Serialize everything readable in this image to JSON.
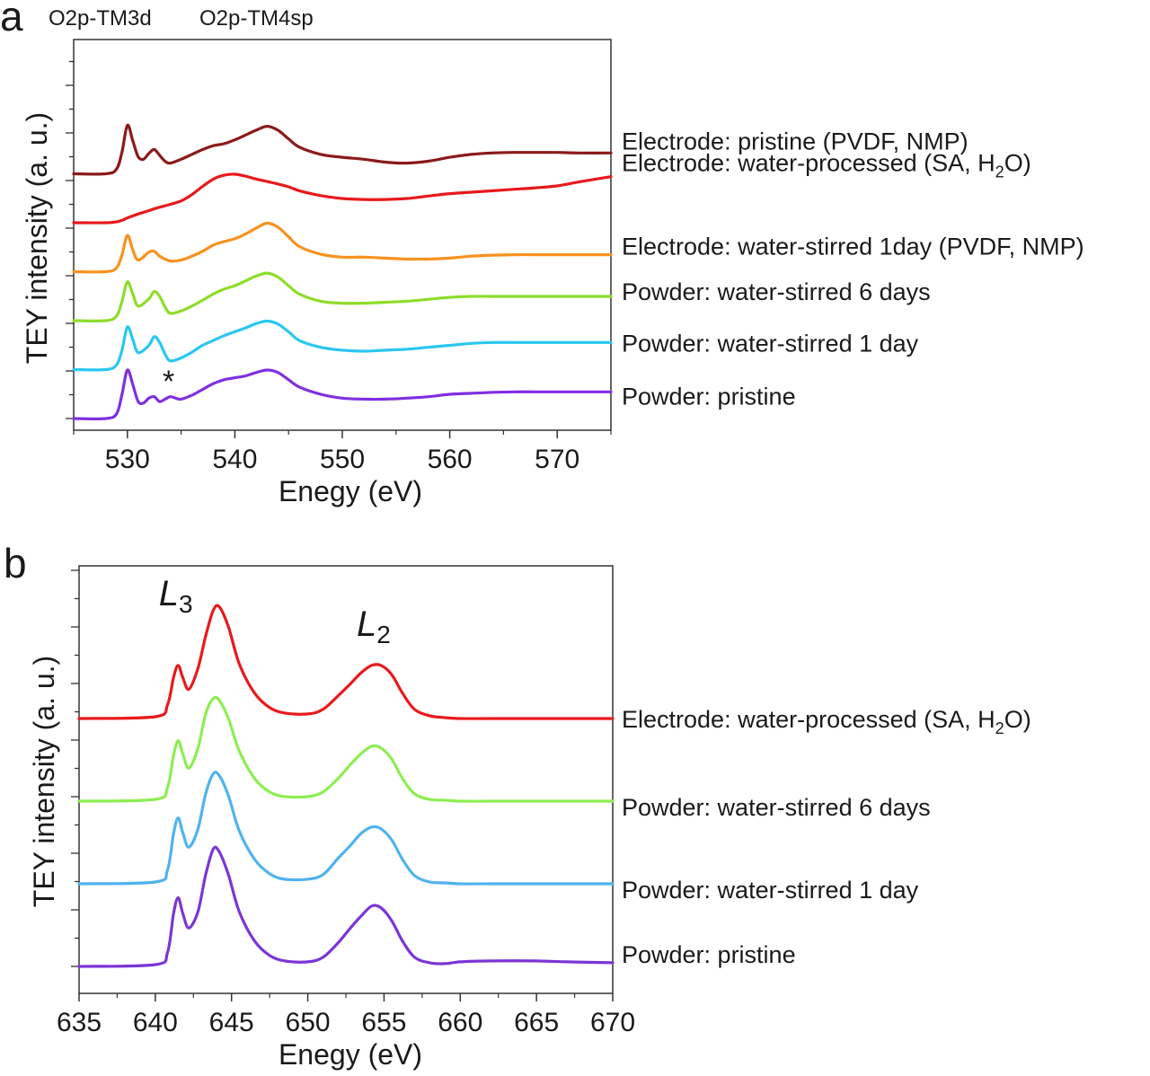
{
  "chart_data": [
    {
      "type": "line",
      "panel_label": "a",
      "xlabel": "Enegy (eV)",
      "ylabel": "TEY intensity (a. u.)",
      "xlim": [
        525,
        575
      ],
      "xticks": [
        530,
        540,
        550,
        560,
        570
      ],
      "top_annotations": [
        "O2p-TM3d",
        "O2p-TM4sp"
      ],
      "peak_marker": {
        "text": "*",
        "x": 534
      },
      "series": [
        {
          "name": "Electrode: pristine (PVDF, NMP)",
          "color": "#8b1a1a",
          "offset": 5,
          "x": [
            525,
            528,
            529,
            529.5,
            530,
            530.5,
            531,
            531.5,
            532,
            532.5,
            533,
            533.5,
            534,
            535,
            536,
            537,
            538,
            539,
            540,
            541,
            542,
            543,
            544,
            545,
            546,
            548,
            550,
            552,
            554,
            556,
            558,
            560,
            562,
            564,
            566,
            568,
            570,
            572,
            575
          ],
          "y": [
            0,
            0,
            0.1,
            0.45,
            1.0,
            0.68,
            0.35,
            0.3,
            0.42,
            0.5,
            0.38,
            0.26,
            0.22,
            0.3,
            0.4,
            0.5,
            0.58,
            0.62,
            0.7,
            0.8,
            0.9,
            0.98,
            0.9,
            0.72,
            0.55,
            0.4,
            0.34,
            0.3,
            0.24,
            0.22,
            0.26,
            0.34,
            0.4,
            0.43,
            0.44,
            0.44,
            0.44,
            0.43,
            0.43
          ]
        },
        {
          "name": "Electrode: water-processed (SA, H₂O)",
          "color": "#e8191c",
          "offset": 4,
          "x": [
            525,
            528,
            529,
            529.5,
            530,
            531,
            532,
            533,
            534,
            535,
            536,
            537,
            538,
            539,
            540,
            541,
            542,
            543,
            544,
            545,
            546,
            548,
            550,
            552,
            554,
            556,
            558,
            560,
            562,
            564,
            566,
            568,
            570,
            572,
            575
          ],
          "y": [
            0,
            0,
            0.02,
            0.05,
            0.1,
            0.18,
            0.25,
            0.32,
            0.38,
            0.45,
            0.58,
            0.75,
            0.9,
            0.98,
            1.0,
            0.96,
            0.9,
            0.85,
            0.8,
            0.74,
            0.66,
            0.56,
            0.5,
            0.48,
            0.48,
            0.5,
            0.55,
            0.6,
            0.63,
            0.66,
            0.69,
            0.72,
            0.76,
            0.84,
            0.95
          ]
        },
        {
          "name": "Electrode: water-stirred 1day (PVDF, NMP)",
          "color": "#f7921e",
          "offset": 3,
          "x": [
            525,
            528,
            529,
            529.5,
            530,
            530.5,
            531,
            532,
            532.5,
            533,
            534,
            535,
            536,
            537,
            538,
            539,
            540,
            541,
            542,
            543,
            544,
            545,
            546,
            548,
            550,
            552,
            554,
            556,
            558,
            560,
            562,
            564,
            566,
            568,
            570,
            572,
            575
          ],
          "y": [
            0,
            0,
            0.08,
            0.35,
            0.75,
            0.45,
            0.24,
            0.4,
            0.42,
            0.32,
            0.22,
            0.24,
            0.32,
            0.42,
            0.55,
            0.62,
            0.68,
            0.78,
            0.9,
            1.0,
            0.92,
            0.72,
            0.52,
            0.36,
            0.3,
            0.3,
            0.28,
            0.26,
            0.26,
            0.28,
            0.32,
            0.34,
            0.35,
            0.35,
            0.35,
            0.35,
            0.35
          ]
        },
        {
          "name": "Powder: water-stirred 6 days",
          "color": "#8edc2a",
          "offset": 2,
          "x": [
            525,
            528,
            529,
            529.5,
            530,
            530.5,
            531,
            532,
            532.5,
            533,
            533.5,
            534,
            535,
            536,
            537,
            538,
            539,
            540,
            541,
            542,
            543,
            544,
            545,
            546,
            548,
            550,
            552,
            554,
            556,
            558,
            560,
            562,
            564,
            566,
            568,
            570,
            572,
            575
          ],
          "y": [
            0,
            0,
            0.1,
            0.4,
            0.8,
            0.55,
            0.3,
            0.45,
            0.6,
            0.5,
            0.28,
            0.15,
            0.2,
            0.3,
            0.42,
            0.55,
            0.65,
            0.72,
            0.82,
            0.92,
            0.98,
            0.9,
            0.72,
            0.55,
            0.4,
            0.36,
            0.36,
            0.38,
            0.4,
            0.44,
            0.48,
            0.5,
            0.5,
            0.5,
            0.5,
            0.5,
            0.5,
            0.5
          ]
        },
        {
          "name": "Powder: water-stirred 1 day",
          "color": "#29c7f0",
          "offset": 1,
          "x": [
            525,
            528,
            529,
            529.5,
            530,
            530.5,
            531,
            532,
            532.5,
            533,
            533.5,
            534,
            535,
            536,
            537,
            538,
            539,
            540,
            541,
            542,
            543,
            544,
            545,
            546,
            548,
            550,
            552,
            554,
            556,
            558,
            560,
            562,
            564,
            566,
            568,
            570,
            572,
            575
          ],
          "y": [
            0,
            0,
            0.1,
            0.4,
            0.88,
            0.62,
            0.35,
            0.5,
            0.68,
            0.56,
            0.32,
            0.18,
            0.24,
            0.36,
            0.5,
            0.6,
            0.7,
            0.78,
            0.86,
            0.95,
            1.0,
            0.94,
            0.78,
            0.6,
            0.46,
            0.4,
            0.38,
            0.4,
            0.42,
            0.46,
            0.5,
            0.54,
            0.56,
            0.56,
            0.56,
            0.56,
            0.56,
            0.56
          ]
        },
        {
          "name": "Powder: pristine",
          "color": "#7f2fe0",
          "offset": 0,
          "x": [
            525,
            528,
            529,
            529.5,
            530,
            530.5,
            531,
            531.5,
            532,
            532.5,
            533,
            533.5,
            534,
            534.5,
            535,
            536,
            537,
            538,
            539,
            540,
            541,
            542,
            543,
            544,
            545,
            546,
            548,
            550,
            552,
            554,
            556,
            558,
            560,
            562,
            564,
            566,
            568,
            570,
            572,
            575
          ],
          "y": [
            0,
            0,
            0.1,
            0.5,
            1.0,
            0.7,
            0.35,
            0.32,
            0.42,
            0.45,
            0.35,
            0.4,
            0.45,
            0.42,
            0.4,
            0.48,
            0.6,
            0.72,
            0.8,
            0.84,
            0.88,
            0.95,
            1.0,
            0.95,
            0.8,
            0.65,
            0.5,
            0.42,
            0.4,
            0.4,
            0.42,
            0.45,
            0.5,
            0.52,
            0.54,
            0.55,
            0.55,
            0.55,
            0.55,
            0.55
          ]
        }
      ]
    },
    {
      "type": "line",
      "panel_label": "b",
      "xlabel": "Enegy (eV)",
      "ylabel": "TEY intensity (a. u.)",
      "xlim": [
        635,
        670
      ],
      "xticks": [
        635,
        640,
        645,
        650,
        655,
        660,
        665,
        670
      ],
      "peak_labels": [
        {
          "main": "L",
          "sub": "3",
          "x": 642
        },
        {
          "main": "L",
          "sub": "2",
          "x": 654.5
        }
      ],
      "series": [
        {
          "name": "Electrode: water-processed (SA, H₂O)",
          "color": "#e8191c",
          "offset": 3,
          "x": [
            635,
            640,
            640.8,
            641.2,
            641.5,
            641.8,
            642.2,
            642.8,
            643.3,
            643.8,
            644.2,
            644.8,
            645.5,
            646.5,
            647.5,
            648.5,
            650,
            651,
            652,
            652.8,
            653.5,
            654.2,
            654.8,
            655.5,
            656.2,
            657,
            658,
            659,
            660,
            662,
            665,
            667,
            670
          ],
          "y": [
            0,
            0.02,
            0.15,
            0.45,
            0.58,
            0.45,
            0.32,
            0.55,
            0.9,
            1.18,
            1.22,
            1.0,
            0.6,
            0.28,
            0.12,
            0.06,
            0.05,
            0.1,
            0.25,
            0.38,
            0.5,
            0.58,
            0.58,
            0.48,
            0.28,
            0.1,
            0.03,
            0.01,
            0,
            0,
            0,
            0,
            0
          ]
        },
        {
          "name": "Powder: water-stirred 6 days",
          "color": "#8cee52",
          "offset": 2,
          "x": [
            635,
            640,
            640.8,
            641.2,
            641.5,
            641.8,
            642.2,
            642.8,
            643.3,
            643.8,
            644.2,
            644.8,
            645.5,
            646.5,
            647.5,
            648.5,
            650,
            651,
            652,
            652.8,
            653.5,
            654.2,
            654.8,
            655.5,
            656.2,
            657,
            658,
            659,
            660,
            662,
            665,
            667,
            670
          ],
          "y": [
            0,
            0.02,
            0.15,
            0.5,
            0.66,
            0.52,
            0.36,
            0.58,
            0.95,
            1.12,
            1.1,
            0.9,
            0.55,
            0.25,
            0.1,
            0.05,
            0.05,
            0.1,
            0.25,
            0.4,
            0.52,
            0.6,
            0.58,
            0.46,
            0.25,
            0.08,
            0.02,
            0.01,
            0,
            0,
            0,
            0,
            0
          ]
        },
        {
          "name": "Powder: water-stirred 1 day",
          "color": "#4fb3ef",
          "offset": 1,
          "x": [
            635,
            640,
            640.8,
            641.2,
            641.5,
            641.8,
            642.2,
            642.8,
            643.3,
            643.8,
            644.2,
            644.8,
            645.5,
            646.5,
            647.5,
            648.5,
            650,
            651,
            652,
            652.8,
            653.5,
            654.2,
            654.8,
            655.5,
            656.2,
            657,
            658,
            659,
            660,
            662,
            665,
            667,
            670
          ],
          "y": [
            0,
            0.02,
            0.15,
            0.55,
            0.72,
            0.56,
            0.4,
            0.6,
            0.98,
            1.2,
            1.18,
            0.96,
            0.58,
            0.27,
            0.11,
            0.05,
            0.05,
            0.1,
            0.28,
            0.42,
            0.55,
            0.62,
            0.6,
            0.48,
            0.27,
            0.09,
            0.02,
            0.01,
            0,
            0,
            0,
            0,
            0
          ]
        },
        {
          "name": "Powder: pristine",
          "color": "#7b35d6",
          "offset": 0,
          "x": [
            635,
            640,
            640.8,
            641.2,
            641.5,
            641.8,
            642.2,
            642.8,
            643.3,
            643.8,
            644.2,
            644.8,
            645.5,
            646.5,
            647.5,
            648.5,
            650,
            651,
            652,
            652.8,
            653.5,
            654.2,
            654.8,
            655.5,
            656.2,
            657,
            658,
            659,
            660,
            662,
            665,
            667,
            670
          ],
          "y": [
            0,
            0.02,
            0.15,
            0.58,
            0.75,
            0.58,
            0.42,
            0.6,
            1.0,
            1.28,
            1.25,
            1.0,
            0.6,
            0.28,
            0.12,
            0.06,
            0.05,
            0.1,
            0.26,
            0.42,
            0.55,
            0.66,
            0.64,
            0.5,
            0.28,
            0.1,
            0.04,
            0.03,
            0.05,
            0.06,
            0.06,
            0.05,
            0.04
          ]
        }
      ]
    }
  ]
}
